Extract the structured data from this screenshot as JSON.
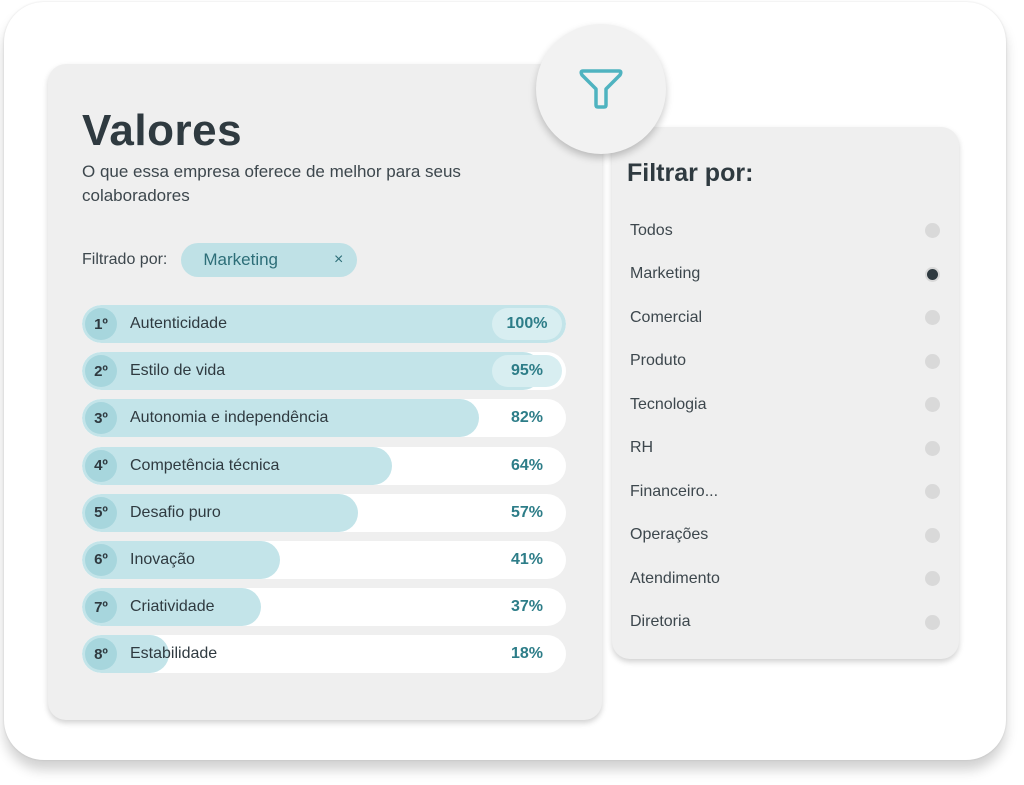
{
  "values": {
    "title": "Valores",
    "subtitle": "O que essa empresa oferece de melhor para seus colaboradores",
    "filter_label": "Filtrado por:",
    "active_filter": "Marketing",
    "clear_icon": "×",
    "items": [
      {
        "rank": "1º",
        "label": "Autenticidade",
        "percent": 100,
        "percent_label": "100%"
      },
      {
        "rank": "2º",
        "label": "Estilo de vida",
        "percent": 95,
        "percent_label": "95%"
      },
      {
        "rank": "3º",
        "label": "Autonomia e independência",
        "percent": 82,
        "percent_label": "82%"
      },
      {
        "rank": "4º",
        "label": "Competência técnica",
        "percent": 64,
        "percent_label": "64%"
      },
      {
        "rank": "5º",
        "label": "Desafio puro",
        "percent": 57,
        "percent_label": "57%"
      },
      {
        "rank": "6º",
        "label": "Inovação",
        "percent": 41,
        "percent_label": "41%"
      },
      {
        "rank": "7º",
        "label": "Criatividade",
        "percent": 37,
        "percent_label": "37%"
      },
      {
        "rank": "8º",
        "label": "Estabilidade",
        "percent": 18,
        "percent_label": "18%"
      }
    ]
  },
  "filter_panel": {
    "title": "Filtrar por:",
    "selected": "Marketing",
    "options": [
      "Todos",
      "Marketing",
      "Comercial",
      "Produto",
      "Tecnologia",
      "RH",
      "Financeiro...",
      "Operações",
      "Atendimento",
      "Diretoria"
    ]
  },
  "icons": {
    "filter": "funnel-icon"
  },
  "colors": {
    "accent": "#2d7d88",
    "bar_fill": "#c3e4e9",
    "chip": "#bfe1e6",
    "icon": "#4fb3c0"
  }
}
